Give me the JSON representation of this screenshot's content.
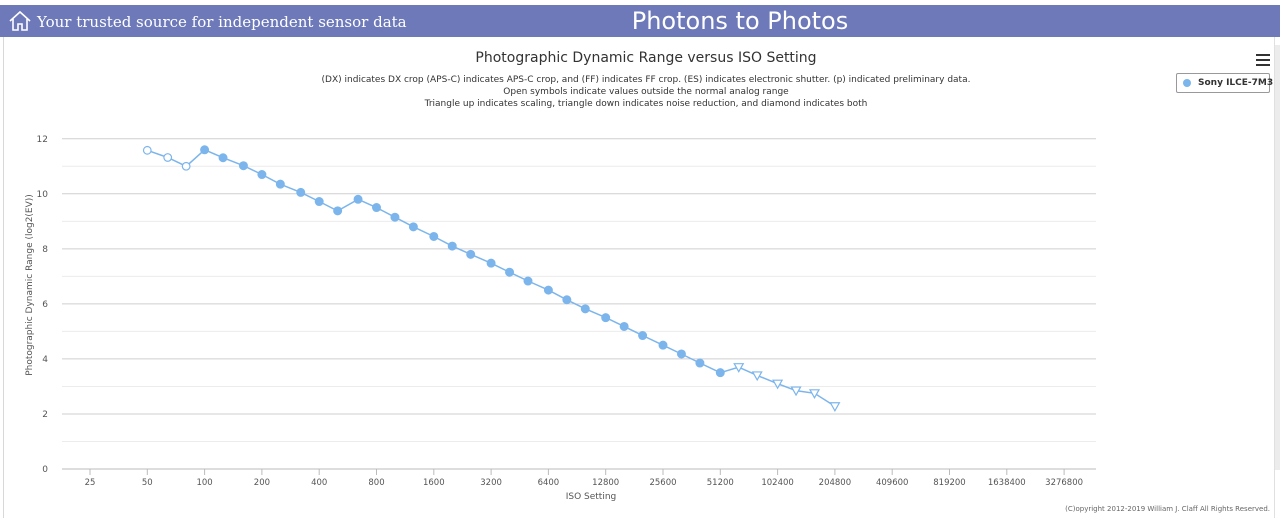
{
  "header": {
    "tagline": "Your trusted source for independent sensor data",
    "site_title": "Photons to Photos"
  },
  "legend": {
    "series_name": "Sony ILCE-7M3"
  },
  "copyright": "(C)opyright 2012-2019 William J. Claff All Rights Reserved.",
  "colors": {
    "header_bg": "#6d79b8",
    "series": "#7cb5ec"
  },
  "chart_data": {
    "type": "line",
    "title": "Photographic Dynamic Range versus ISO Setting",
    "subtitle": [
      "(DX) indicates DX crop (APS-C) indicates APS-C crop, and (FF) indicates FF crop. (ES) indicates electronic shutter. (p) indicated preliminary data.",
      "Open symbols indicate values outside the normal analog range",
      "Triangle up indicates scaling, triangle down indicates noise reduction, and diamond indicates both"
    ],
    "xlabel": "ISO Setting",
    "ylabel": "Photographic Dynamic Range (log2(EV))",
    "x_scale": "log2",
    "x_ticks": [
      25,
      50,
      100,
      200,
      400,
      800,
      1600,
      3200,
      6400,
      12800,
      25600,
      51200,
      102400,
      204800,
      409600,
      819200,
      1638400,
      3276800
    ],
    "y_ticks": [
      0,
      2,
      4,
      6,
      8,
      10,
      12
    ],
    "ylim": [
      0,
      12.5
    ],
    "grid": true,
    "legend_position": "top-right",
    "series": [
      {
        "name": "Sony ILCE-7M3",
        "points": [
          {
            "x": 50,
            "y": 11.58,
            "marker": "open-circle"
          },
          {
            "x": 64,
            "y": 11.32,
            "marker": "open-circle"
          },
          {
            "x": 80,
            "y": 11.0,
            "marker": "open-circle"
          },
          {
            "x": 100,
            "y": 11.6,
            "marker": "circle"
          },
          {
            "x": 125,
            "y": 11.31,
            "marker": "circle"
          },
          {
            "x": 160,
            "y": 11.02,
            "marker": "circle"
          },
          {
            "x": 200,
            "y": 10.7,
            "marker": "circle"
          },
          {
            "x": 250,
            "y": 10.35,
            "marker": "circle"
          },
          {
            "x": 320,
            "y": 10.05,
            "marker": "circle"
          },
          {
            "x": 400,
            "y": 9.72,
            "marker": "circle"
          },
          {
            "x": 500,
            "y": 9.38,
            "marker": "circle"
          },
          {
            "x": 640,
            "y": 9.8,
            "marker": "circle"
          },
          {
            "x": 800,
            "y": 9.5,
            "marker": "circle"
          },
          {
            "x": 1000,
            "y": 9.15,
            "marker": "circle"
          },
          {
            "x": 1250,
            "y": 8.8,
            "marker": "circle"
          },
          {
            "x": 1600,
            "y": 8.45,
            "marker": "circle"
          },
          {
            "x": 2000,
            "y": 8.1,
            "marker": "circle"
          },
          {
            "x": 2500,
            "y": 7.8,
            "marker": "circle"
          },
          {
            "x": 3200,
            "y": 7.48,
            "marker": "circle"
          },
          {
            "x": 4000,
            "y": 7.15,
            "marker": "circle"
          },
          {
            "x": 5000,
            "y": 6.83,
            "marker": "circle"
          },
          {
            "x": 6400,
            "y": 6.5,
            "marker": "circle"
          },
          {
            "x": 8000,
            "y": 6.15,
            "marker": "circle"
          },
          {
            "x": 10000,
            "y": 5.82,
            "marker": "circle"
          },
          {
            "x": 12800,
            "y": 5.5,
            "marker": "circle"
          },
          {
            "x": 16000,
            "y": 5.18,
            "marker": "circle"
          },
          {
            "x": 20000,
            "y": 4.85,
            "marker": "circle"
          },
          {
            "x": 25600,
            "y": 4.5,
            "marker": "circle"
          },
          {
            "x": 32000,
            "y": 4.18,
            "marker": "circle"
          },
          {
            "x": 40000,
            "y": 3.85,
            "marker": "circle"
          },
          {
            "x": 51200,
            "y": 3.5,
            "marker": "circle"
          },
          {
            "x": 64000,
            "y": 3.7,
            "marker": "open-triangle-down"
          },
          {
            "x": 80000,
            "y": 3.4,
            "marker": "open-triangle-down"
          },
          {
            "x": 102400,
            "y": 3.1,
            "marker": "open-triangle-down"
          },
          {
            "x": 128000,
            "y": 2.85,
            "marker": "open-triangle-down"
          },
          {
            "x": 160000,
            "y": 2.75,
            "marker": "open-triangle-down"
          },
          {
            "x": 204800,
            "y": 2.28,
            "marker": "open-triangle-down"
          }
        ]
      }
    ]
  }
}
